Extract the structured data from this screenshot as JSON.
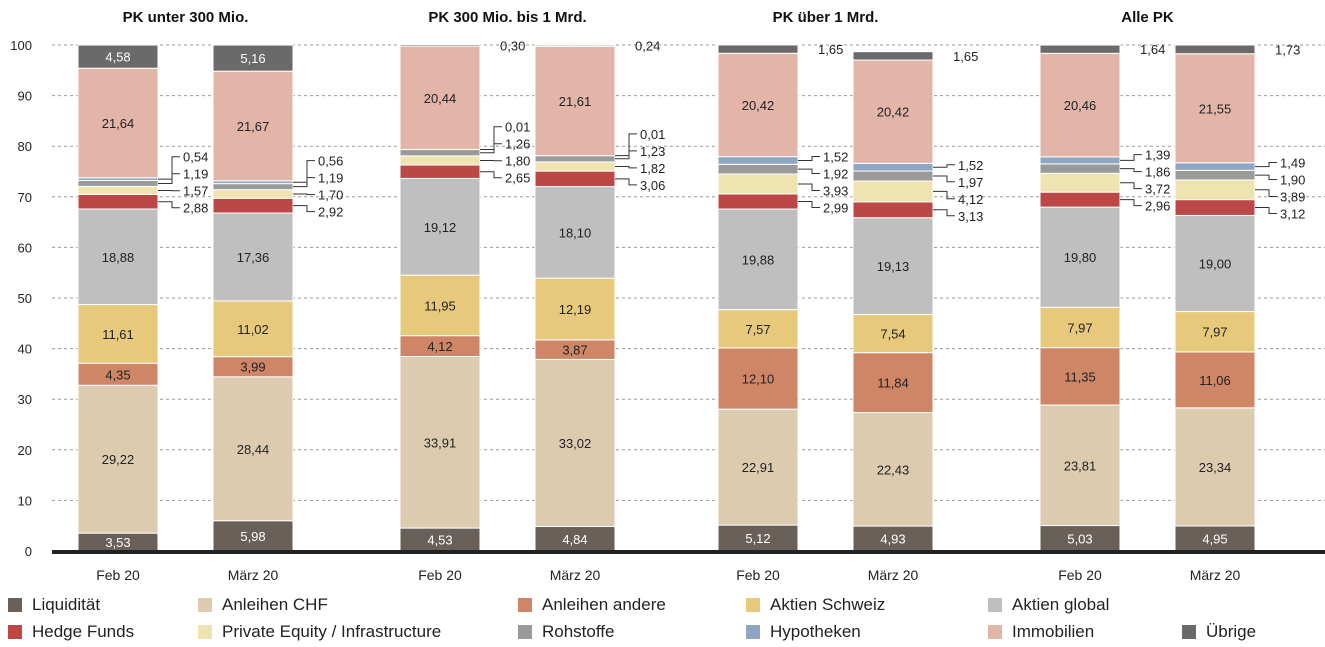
{
  "chart_data": {
    "type": "bar",
    "stacked": true,
    "ylim": [
      0,
      100
    ],
    "yticks": [
      0,
      10,
      20,
      30,
      40,
      50,
      60,
      70,
      80,
      90,
      100
    ],
    "grid": "horizontal-dashed",
    "legend_position": "bottom",
    "groups": [
      {
        "title": "PK unter 300 Mio.",
        "bars": [
          {
            "label": "Feb 20",
            "values": [
              3.53,
              29.22,
              4.35,
              11.61,
              18.88,
              2.88,
              1.57,
              1.19,
              0.54,
              21.64,
              4.58
            ]
          },
          {
            "label": "März 20",
            "values": [
              5.98,
              28.44,
              3.99,
              11.02,
              17.36,
              2.92,
              1.7,
              1.19,
              0.56,
              21.67,
              5.16
            ]
          }
        ]
      },
      {
        "title": "PK 300 Mio. bis 1 Mrd.",
        "bars": [
          {
            "label": "Feb 20",
            "values": [
              4.53,
              33.91,
              4.12,
              11.95,
              19.12,
              2.65,
              1.8,
              1.26,
              0.01,
              20.44,
              0.3
            ]
          },
          {
            "label": "März 20",
            "values": [
              4.84,
              33.02,
              3.87,
              12.19,
              18.1,
              3.06,
              1.82,
              1.23,
              0.01,
              21.61,
              0.24
            ]
          }
        ]
      },
      {
        "title": "PK über 1 Mrd.",
        "bars": [
          {
            "label": "Feb 20",
            "values": [
              5.12,
              22.91,
              12.1,
              7.57,
              19.88,
              2.99,
              3.93,
              1.92,
              1.52,
              20.42,
              1.65
            ]
          },
          {
            "label": "März 20",
            "values": [
              4.93,
              22.43,
              11.84,
              7.54,
              19.13,
              3.13,
              4.12,
              1.97,
              1.52,
              20.42,
              1.65
            ]
          }
        ]
      },
      {
        "title": "Alle PK",
        "bars": [
          {
            "label": "Feb 20",
            "values": [
              5.03,
              23.81,
              11.35,
              7.97,
              19.8,
              2.96,
              3.72,
              1.86,
              1.39,
              20.46,
              1.64
            ]
          },
          {
            "label": "März 20",
            "values": [
              4.95,
              23.34,
              11.06,
              7.97,
              19.0,
              3.12,
              3.89,
              1.9,
              1.49,
              21.55,
              1.73
            ]
          }
        ]
      }
    ],
    "series": [
      {
        "name": "Liquidität",
        "color": "#6a605a"
      },
      {
        "name": "Anleihen CHF",
        "color": "#ddcbb0"
      },
      {
        "name": "Anleihen andere",
        "color": "#cf8667"
      },
      {
        "name": "Aktien Schweiz",
        "color": "#e6c97a"
      },
      {
        "name": "Aktien global",
        "color": "#bfbfbf"
      },
      {
        "name": "Hedge Funds",
        "color": "#bc4747"
      },
      {
        "name": "Private Equity / Infrastructure",
        "color": "#efe4b0"
      },
      {
        "name": "Rohstoffe",
        "color": "#9a9a9a"
      },
      {
        "name": "Hypotheken",
        "color": "#8ea6c4"
      },
      {
        "name": "Immobilien",
        "color": "#e3b5a8"
      },
      {
        "name": "Übrige",
        "color": "#6a6a6a"
      }
    ],
    "legend": [
      [
        "Liquidität",
        "Anleihen CHF",
        "Anleihen andere",
        "Aktien Schweiz",
        "Aktien global"
      ],
      [
        "Hedge Funds",
        "Private Equity / Infrastructure",
        "Rohstoffe",
        "Hypotheken",
        "Immobilien",
        "Übrige"
      ]
    ]
  }
}
